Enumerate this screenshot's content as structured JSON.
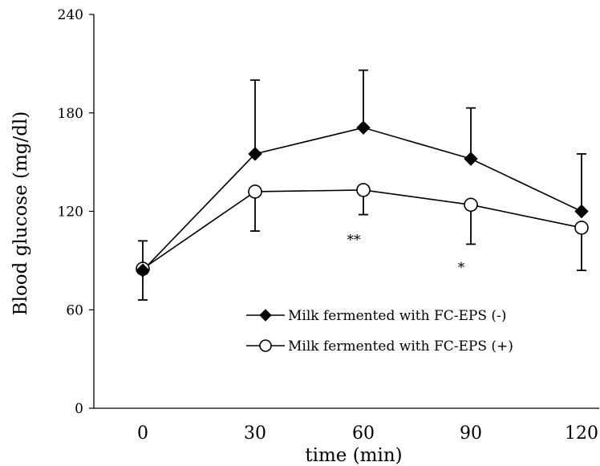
{
  "chart_data": {
    "type": "line",
    "title": "",
    "xlabel": "time (min)",
    "ylabel": "Blood glucose (mg/dl)",
    "x": [
      0,
      30,
      60,
      90,
      120
    ],
    "x_ticks": [
      "0",
      "30",
      "60",
      "90",
      "120"
    ],
    "ylim": [
      0,
      240
    ],
    "y_ticks": [
      "0",
      "60",
      "120",
      "180",
      "240"
    ],
    "grid": false,
    "legend_position": "lower-right",
    "series": [
      {
        "name": "Milk fermented with FC-EPS (-)",
        "marker": "filled-diamond",
        "values": [
          84,
          155,
          171,
          152,
          120
        ],
        "error_up": [
          18,
          45,
          35,
          31,
          35
        ],
        "error_down": [
          18,
          0,
          0,
          0,
          0
        ]
      },
      {
        "name": "Milk fermented with FC-EPS (+)",
        "marker": "open-circle",
        "values": [
          85,
          132,
          133,
          124,
          110
        ],
        "error_up": [
          0,
          0,
          0,
          0,
          0
        ],
        "error_down": [
          0,
          24,
          15,
          24,
          26
        ]
      }
    ],
    "annotations": [
      {
        "text": "**",
        "x": 60,
        "y": 103
      },
      {
        "text": "*",
        "x": 90,
        "y": 86
      }
    ]
  }
}
